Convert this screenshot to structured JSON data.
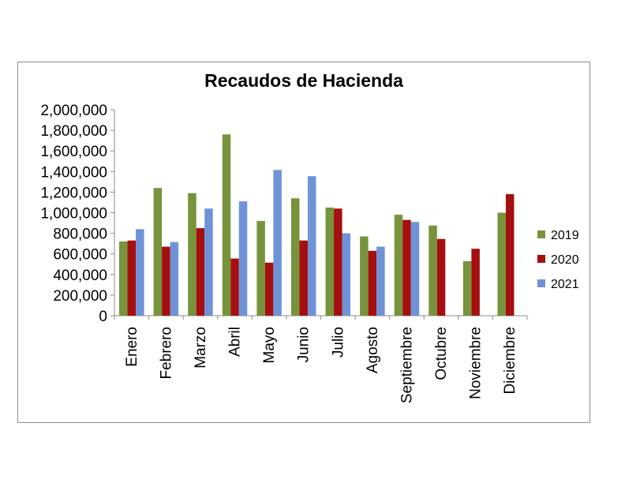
{
  "chart_data": {
    "type": "bar",
    "title": "Recaudos de Hacienda",
    "categories": [
      "Enero",
      "Febrero",
      "Marzo",
      "Abril",
      "Mayo",
      "Junio",
      "Julio",
      "Agosto",
      "Septiembre",
      "Octubre",
      "Noviembre",
      "Diciembre"
    ],
    "series": [
      {
        "name": "2019",
        "color": "#77933c",
        "values": [
          720000,
          1240000,
          1190000,
          1760000,
          920000,
          1140000,
          1050000,
          770000,
          980000,
          875000,
          530000,
          1000000
        ]
      },
      {
        "name": "2020",
        "color": "#a50f0f",
        "values": [
          730000,
          670000,
          850000,
          555000,
          515000,
          730000,
          1040000,
          630000,
          930000,
          745000,
          650000,
          1180000
        ]
      },
      {
        "name": "2021",
        "color": "#6f93d6",
        "values": [
          840000,
          715000,
          1040000,
          1110000,
          1415000,
          1355000,
          800000,
          670000,
          910000,
          null,
          null,
          null
        ]
      }
    ],
    "ylim": [
      0,
      2000000
    ],
    "yticks": [
      "0",
      "200,000",
      "400,000",
      "600,000",
      "800,000",
      "1,000,000",
      "1,200,000",
      "1,400,000",
      "1,600,000",
      "1,800,000",
      "2,000,000"
    ],
    "xlabel": "",
    "ylabel": "",
    "grid": false,
    "legend_position": "right"
  }
}
